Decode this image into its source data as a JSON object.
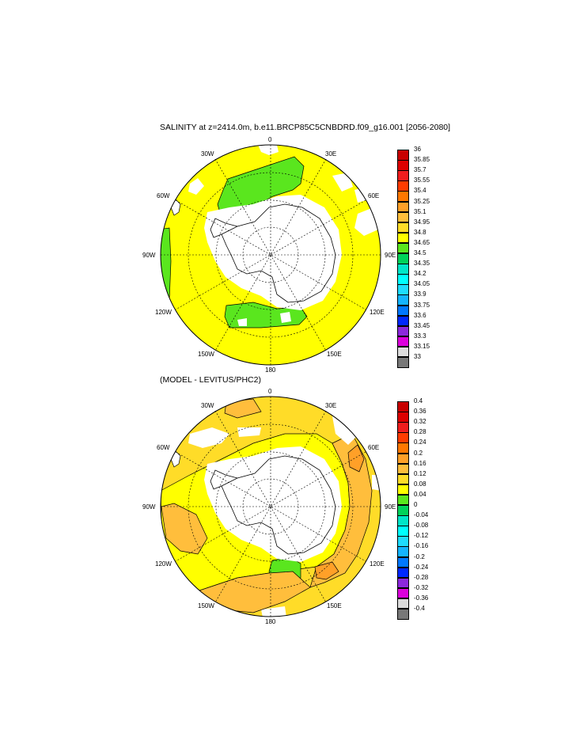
{
  "panel1": {
    "title": "SALINITY at z=2414.0m, b.e11.BRCP85C5CNBDRD.f09_g16.001 [2056-2080]",
    "lon_labels": {
      "l0": "0",
      "l30e": "30E",
      "l60e": "60E",
      "l90e": "90E",
      "l120e": "120E",
      "l150e": "150E",
      "l180": "180",
      "l150w": "150W",
      "l120w": "120W",
      "l90w": "90W",
      "l60w": "60W",
      "l30w": "30W"
    },
    "colorbar": {
      "labels": [
        "36",
        "35.85",
        "35.7",
        "35.55",
        "35.4",
        "35.25",
        "35.1",
        "34.95",
        "34.8",
        "34.65",
        "34.5",
        "34.35",
        "34.2",
        "34.05",
        "33.9",
        "33.75",
        "33.6",
        "33.45",
        "33.3",
        "33.15",
        "33"
      ],
      "colors": [
        "#c80000",
        "#dc0000",
        "#f01e1e",
        "#ff3c00",
        "#ff7800",
        "#ffa028",
        "#ffbe3c",
        "#ffdc28",
        "#ffff00",
        "#5ae61e",
        "#00d25a",
        "#00e6c8",
        "#00ffff",
        "#1edcff",
        "#14b4ff",
        "#0078ff",
        "#0028ff",
        "#8c28dc",
        "#dc00dc",
        "#dcdcdc",
        "#787878"
      ]
    }
  },
  "panel2": {
    "title": "(MODEL - LEVITUS/PHC2)",
    "lon_labels": {
      "l0": "0",
      "l30e": "30E",
      "l60e": "60E",
      "l90e": "90E",
      "l120e": "120E",
      "l150e": "150E",
      "l180": "180",
      "l150w": "150W",
      "l120w": "120W",
      "l90w": "90W",
      "l60w": "60W",
      "l30w": "30W"
    },
    "colorbar": {
      "labels": [
        "0.4",
        "0.36",
        "0.32",
        "0.28",
        "0.24",
        "0.2",
        "0.16",
        "0.12",
        "0.08",
        "0.04",
        "0",
        "-0.04",
        "-0.08",
        "-0.12",
        "-0.16",
        "-0.2",
        "-0.24",
        "-0.28",
        "-0.32",
        "-0.36",
        "-0.4"
      ],
      "colors": [
        "#c80000",
        "#dc0000",
        "#f01e1e",
        "#ff3c00",
        "#ff7800",
        "#ffa028",
        "#ffbe3c",
        "#ffdc28",
        "#ffff00",
        "#5ae61e",
        "#00d25a",
        "#00e6c8",
        "#00ffff",
        "#1edcff",
        "#14b4ff",
        "#0078ff",
        "#0028ff",
        "#8c28dc",
        "#dc00dc",
        "#dcdcdc",
        "#787878"
      ]
    }
  }
}
